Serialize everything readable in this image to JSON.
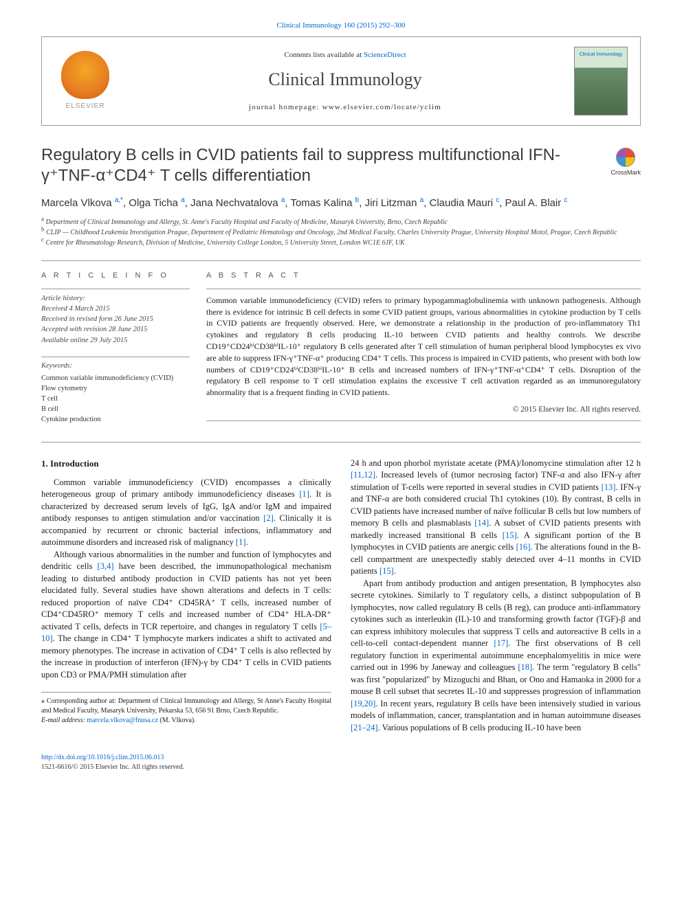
{
  "top_citation": "Clinical Immunology 160 (2015) 292–300",
  "header": {
    "contents_prefix": "Contents lists available at ",
    "contents_link": "ScienceDirect",
    "journal": "Clinical Immunology",
    "homepage_prefix": "journal homepage: ",
    "homepage_url": "www.elsevier.com/locate/yclim",
    "publisher": "ELSEVIER",
    "cover_title": "Clinical Immunology"
  },
  "crossmark": "CrossMark",
  "title": "Regulatory B cells in CVID patients fail to suppress multifunctional IFN-γ⁺TNF-α⁺CD4⁺ T cells differentiation",
  "authors_html": "Marcela Vlkova <sup>a,*</sup>, Olga Ticha <sup>a</sup>, Jana Nechvatalova <sup>a</sup>, Tomas Kalina <sup>b</sup>, Jiri Litzman <sup>a</sup>, Claudia Mauri <sup>c</sup>, Paul A. Blair <sup>c</sup>",
  "affiliations": [
    {
      "sup": "a",
      "text": "Department of Clinical Immunology and Allergy, St. Anne's Faculty Hospital and Faculty of Medicine, Masaryk University, Brno, Czech Republic"
    },
    {
      "sup": "b",
      "text": "CLIP — Childhood Leukemia Investigation Prague, Department of Pediatric Hematology and Oncology, 2nd Medical Faculty, Charles University Prague, University Hospital Motol, Prague, Czech Republic"
    },
    {
      "sup": "c",
      "text": "Centre for Rheumatology Research, Division of Medicine, University College London, 5 University Street, London WC1E 6JF, UK"
    }
  ],
  "article_info": {
    "label": "A R T I C L E   I N F O",
    "history_label": "Article history:",
    "history": [
      "Received 4 March 2015",
      "Received in revised form 26 June 2015",
      "Accepted with revision 28 June 2015",
      "Available online 29 July 2015"
    ],
    "keywords_label": "Keywords:",
    "keywords": [
      "Common variable immunodeficiency (CVID)",
      "Flow cytometry",
      "T cell",
      "B cell",
      "Cytokine production"
    ]
  },
  "abstract": {
    "label": "A B S T R A C T",
    "text": "Common variable immunodeficiency (CVID) refers to primary hypogammaglobulinemia with unknown pathogenesis. Although there is evidence for intrinsic B cell defects in some CVID patient groups, various abnormalities in cytokine production by T cells in CVID patients are frequently observed. Here, we demonstrate a relationship in the production of pro-inflammatory Th1 cytokines and regulatory B cells producing IL-10 between CVID patients and healthy controls. We describe CD19⁺CD24ʰⁱCD38ʰⁱIL-10⁺ regulatory B cells generated after T cell stimulation of human peripheral blood lymphocytes ex vivo are able to suppress IFN-γ⁺TNF-α⁺ producing CD4⁺ T cells. This process is impaired in CVID patients, who present with both low numbers of CD19⁺CD24ʰⁱCD38ʰⁱIL-10⁺ B cells and increased numbers of IFN-γ⁺TNF-α⁺CD4⁺ T cells. Disruption of the regulatory B cell response to T cell stimulation explains the excessive T cell activation regarded as an immunoregulatory abnormality that is a frequent finding in CVID patients.",
    "copyright": "© 2015 Elsevier Inc. All rights reserved."
  },
  "body": {
    "heading": "1. Introduction",
    "p1": "Common variable immunodeficiency (CVID) encompasses a clinically heterogeneous group of primary antibody immunodeficiency diseases [1]. It is characterized by decreased serum levels of IgG, IgA and/or IgM and impaired antibody responses to antigen stimulation and/or vaccination [2]. Clinically it is accompanied by recurrent or chronic bacterial infections, inflammatory and autoimmune disorders and increased risk of malignancy [1].",
    "p2": "Although various abnormalities in the number and function of lymphocytes and dendritic cells [3,4] have been described, the immunopathological mechanism leading to disturbed antibody production in CVID patients has not yet been elucidated fully. Several studies have shown alterations and defects in T cells: reduced proportion of naïve CD4⁺ CD45RA⁺ T cells, increased number of CD4⁺CD45RO⁺ memory T cells and increased number of CD4⁺ HLA-DR⁺ activated T cells, defects in TCR repertoire, and changes in regulatory T cells [5–10]. The change in CD4⁺ T lymphocyte markers indicates a shift to activated and memory phenotypes. The increase in activation of CD4⁺ T cells is also reflected by the increase in production of interferon (IFN)-γ by CD4⁺ T cells in CVID patients upon CD3 or PMA/PMH stimulation after",
    "p3": "24 h and upon phorbol myristate acetate (PMA)/Ionomycine stimulation after 12 h [11,12]. Increased levels of (tumor necrosing factor) TNF-α and also IFN-γ after stimulation of T-cells were reported in several studies in CVID patients [13]. IFN-γ and TNF-α are both considered crucial Th1 cytokines (10). By contrast, B cells in CVID patients have increased number of naïve follicular B cells but low numbers of memory B cells and plasmablasts [14]. A subset of CVID patients presents with markedly increased transitional B cells [15]. A significant portion of the B lymphocytes in CVID patients are anergic cells [16]. The alterations found in the B-cell compartment are unexpectedly stably detected over 4–11 months in CVID patients [15].",
    "p4": "Apart from antibody production and antigen presentation, B lymphocytes also secrete cytokines. Similarly to T regulatory cells, a distinct subpopulation of B lymphocytes, now called regulatory B cells (B reg), can produce anti-inflammatory cytokines such as interleukin (IL)-10 and transforming growth factor (TGF)-β and can express inhibitory molecules that suppress T cells and autoreactive B cells in a cell-to-cell contact-dependent manner [17]. The first observations of B cell regulatory function in experimental autoimmune encephalomyelitis in mice were carried out in 1996 by Janeway and colleagues [18]. The term \"regulatory B cells\" was first \"popularized\" by Mizoguchi and Bhan, or Ono and Hamaoka in 2000 for a mouse B cell subset that secretes IL-10 and suppresses progression of inflammation [19,20]. In recent years, regulatory B cells have been intensively studied in various models of inflammation, cancer, transplantation and in human autoimmune diseases [21–24]. Various populations of B cells producing IL-10 have been"
  },
  "footnote": {
    "corr_label": "⁎ Corresponding author at: ",
    "corr_text": "Department of Clinical Immunology and Allergy, St Anne's Faculty Hospital and Medical Faculty, Masaryk University, Pekarska 53, 656 91 Brno, Czech Republic.",
    "email_label": "E-mail address: ",
    "email": "marcela.vlkova@fnusa.cz",
    "email_suffix": " (M. Vlkova)."
  },
  "footer": {
    "doi": "http://dx.doi.org/10.1016/j.clim.2015.06.013",
    "issn_line": "1521-6616/© 2015 Elsevier Inc. All rights reserved."
  },
  "colors": {
    "link": "#0066cc",
    "text": "#1a1a1a",
    "rule": "#999999"
  }
}
